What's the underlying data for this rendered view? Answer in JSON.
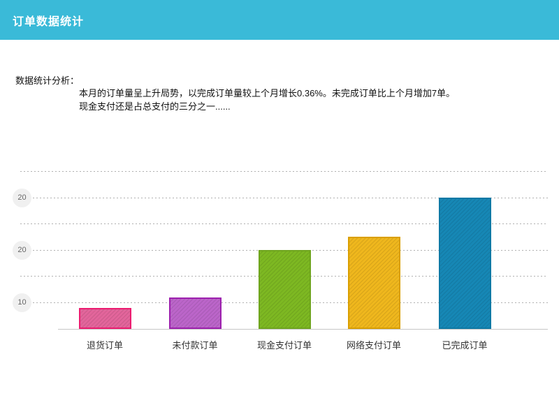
{
  "header": {
    "title": "订单数据统计",
    "bg_color": "#3ABAD8",
    "text_color": "#ffffff"
  },
  "analysis": {
    "label": "数据统计分析：",
    "lines": [
      "本月的订单量呈上升局势，以完成订单量较上个月增长0.36%。未完成订单比上个月增加7单。",
      "现金支付还是占总支付的三分之一......"
    ]
  },
  "chart_data": {
    "type": "bar",
    "title": "",
    "xlabel": "",
    "ylabel": "",
    "categories": [
      "退货订单",
      "未付款订单",
      "现金支付订单",
      "网络支付订单",
      "已完成订单"
    ],
    "values": [
      8,
      12,
      30,
      35,
      50
    ],
    "bar_colors": [
      {
        "fill": "#E2659B",
        "border": "#EC1C70"
      },
      {
        "fill": "#BB65C9",
        "border": "#9D20AE"
      },
      {
        "fill": "#7DB822",
        "border": "#6FA51E"
      },
      {
        "fill": "#EFB71D",
        "border": "#DA9F00"
      },
      {
        "fill": "#1687B5",
        "border": "#0E79A5"
      }
    ],
    "y_ticks_displayed_top_to_bottom": [
      "20",
      "20",
      "10"
    ],
    "ylim": [
      0,
      55
    ],
    "grid": "dotted horizontal lines, alternating labeled/unlabeled",
    "legend": "none",
    "texture": "diagonal hatch stripes on bars"
  }
}
